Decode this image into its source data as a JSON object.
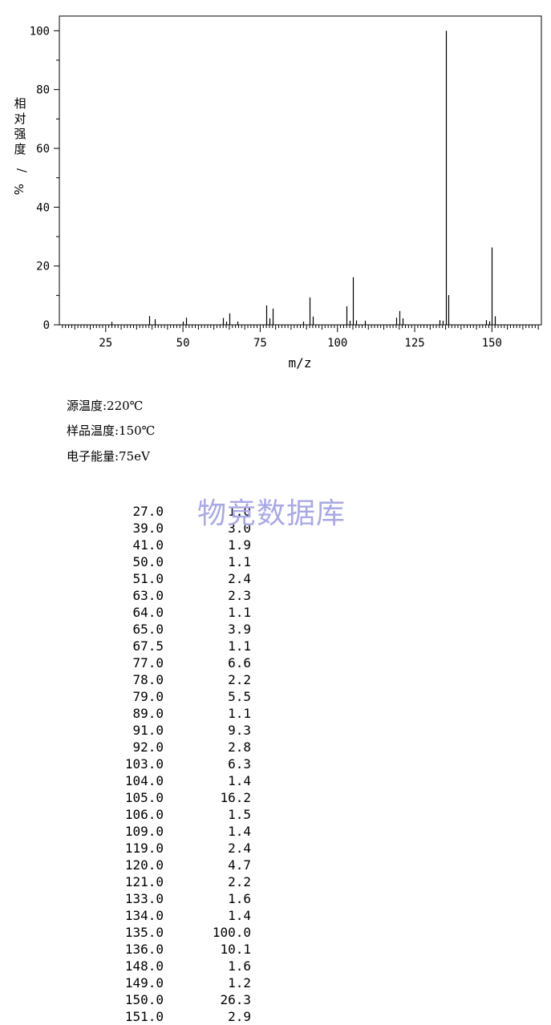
{
  "chart_data": {
    "type": "bar",
    "title": "",
    "xlabel": "m/z",
    "ylabel": "相对强度/%",
    "xlim": [
      10,
      166
    ],
    "ylim": [
      0,
      105
    ],
    "xticks": [
      "25",
      "50",
      "75",
      "100",
      "125",
      "150"
    ],
    "yticks": [
      "0",
      "20",
      "40",
      "60",
      "80",
      "100"
    ],
    "grid": false,
    "x": [
      27,
      39,
      41,
      50,
      51,
      63,
      64,
      65,
      67.5,
      77,
      78,
      79,
      89,
      91,
      92,
      103,
      104,
      105,
      106,
      109,
      119,
      120,
      121,
      133,
      134,
      135,
      136,
      148,
      149,
      150,
      151
    ],
    "values": [
      1.0,
      3.0,
      1.9,
      1.1,
      2.4,
      2.3,
      1.1,
      3.9,
      1.1,
      6.6,
      2.2,
      5.5,
      1.1,
      9.3,
      2.8,
      6.3,
      1.4,
      16.2,
      1.5,
      1.4,
      2.4,
      4.7,
      2.2,
      1.6,
      1.4,
      100.0,
      10.1,
      1.6,
      1.2,
      26.3,
      2.9
    ]
  },
  "conditions": {
    "source_temp": "源温度:220℃",
    "sample_temp": "样品温度:150℃",
    "electron_energy": "电子能量:75eV"
  },
  "watermark": "物竞数据库",
  "peak_table": [
    {
      "mz": "27.0",
      "intensity": "1.0"
    },
    {
      "mz": "39.0",
      "intensity": "3.0"
    },
    {
      "mz": "41.0",
      "intensity": "1.9"
    },
    {
      "mz": "50.0",
      "intensity": "1.1"
    },
    {
      "mz": "51.0",
      "intensity": "2.4"
    },
    {
      "mz": "63.0",
      "intensity": "2.3"
    },
    {
      "mz": "64.0",
      "intensity": "1.1"
    },
    {
      "mz": "65.0",
      "intensity": "3.9"
    },
    {
      "mz": "67.5",
      "intensity": "1.1"
    },
    {
      "mz": "77.0",
      "intensity": "6.6"
    },
    {
      "mz": "78.0",
      "intensity": "2.2"
    },
    {
      "mz": "79.0",
      "intensity": "5.5"
    },
    {
      "mz": "89.0",
      "intensity": "1.1"
    },
    {
      "mz": "91.0",
      "intensity": "9.3"
    },
    {
      "mz": "92.0",
      "intensity": "2.8"
    },
    {
      "mz": "103.0",
      "intensity": "6.3"
    },
    {
      "mz": "104.0",
      "intensity": "1.4"
    },
    {
      "mz": "105.0",
      "intensity": "16.2"
    },
    {
      "mz": "106.0",
      "intensity": "1.5"
    },
    {
      "mz": "109.0",
      "intensity": "1.4"
    },
    {
      "mz": "119.0",
      "intensity": "2.4"
    },
    {
      "mz": "120.0",
      "intensity": "4.7"
    },
    {
      "mz": "121.0",
      "intensity": "2.2"
    },
    {
      "mz": "133.0",
      "intensity": "1.6"
    },
    {
      "mz": "134.0",
      "intensity": "1.4"
    },
    {
      "mz": "135.0",
      "intensity": "100.0"
    },
    {
      "mz": "136.0",
      "intensity": "10.1"
    },
    {
      "mz": "148.0",
      "intensity": "1.6"
    },
    {
      "mz": "149.0",
      "intensity": "1.2"
    },
    {
      "mz": "150.0",
      "intensity": "26.3"
    },
    {
      "mz": "151.0",
      "intensity": "2.9"
    }
  ]
}
